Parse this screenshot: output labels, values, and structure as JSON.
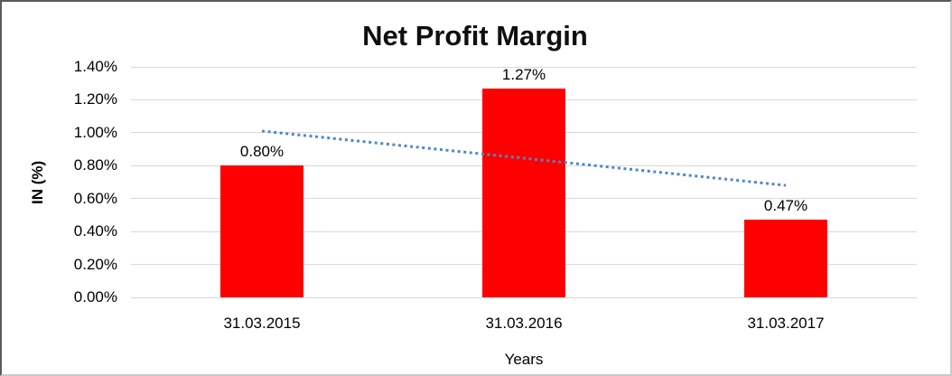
{
  "window": {
    "background": "#ffffff"
  },
  "chart_data": {
    "type": "bar",
    "title": "Net Profit Margin",
    "xlabel": "Years",
    "ylabel": "IN (%)",
    "categories": [
      "31.03.2015",
      "31.03.2016",
      "31.03.2017"
    ],
    "values": [
      0.8,
      1.27,
      0.47
    ],
    "data_labels": [
      "0.80%",
      "1.27%",
      "0.47%"
    ],
    "series_name": "Net Profit Margin",
    "ylim": [
      0,
      1.4
    ],
    "ytick_values": [
      0,
      0.2,
      0.4,
      0.6,
      0.8,
      1.0,
      1.2,
      1.4
    ],
    "ytick_labels": [
      "0.00%",
      "0.20%",
      "0.40%",
      "0.60%",
      "0.80%",
      "1.00%",
      "1.20%",
      "1.40%"
    ],
    "grid": true,
    "gridline_color": "#d9d9d9",
    "bar_color": "#ff0000",
    "legend_position": "none",
    "trendline": {
      "type": "linear",
      "style": "dotted",
      "color": "#4e86c8",
      "start_value": 1.01,
      "end_value": 0.68
    }
  }
}
